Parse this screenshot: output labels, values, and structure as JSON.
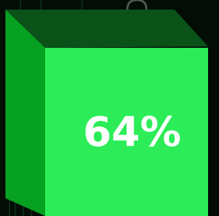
{
  "cube": {
    "label": "64%"
  }
}
